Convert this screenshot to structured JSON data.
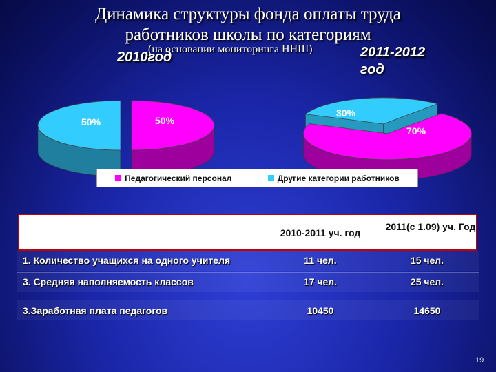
{
  "slide": {
    "title_line1": "Динамика структуры фонда оплаты труда",
    "title_line2": "работников школы по категориям",
    "subtitle": "(на основании мониторинга ННШ)",
    "year_left": "2010год",
    "year_right": "2011-2012 год",
    "page_number": "19"
  },
  "chart_data": [
    {
      "type": "pie",
      "categories": [
        "Педагогический персонал",
        "Другие категории работников"
      ],
      "values": [
        50,
        50
      ],
      "labels": [
        "50%",
        "50%"
      ],
      "colors": [
        "#ff00ff",
        "#33ccff"
      ]
    },
    {
      "type": "pie",
      "categories": [
        "Педагогический персонал",
        "Другие категории работников"
      ],
      "values": [
        70,
        30
      ],
      "labels": [
        "70%",
        "30%"
      ],
      "colors": [
        "#ff00ff",
        "#33ccff"
      ]
    }
  ],
  "legend": {
    "items": [
      {
        "label": "Педагогический персонал",
        "color": "#ff00ff"
      },
      {
        "label": "Другие категории работников",
        "color": "#33ccff"
      }
    ]
  },
  "table": {
    "headers": [
      "",
      "2010-2011 уч. год",
      "2011(с 1.09) уч. Год"
    ],
    "rows": [
      [
        "1. Количество учащихся на одного учителя",
        "11 чел.",
        "15 чел."
      ],
      [
        "3. Средняя наполняемость классов",
        "17 чел.",
        "25 чел."
      ],
      [
        "3.Заработная плата педагогов",
        "10450",
        "14650"
      ]
    ]
  }
}
